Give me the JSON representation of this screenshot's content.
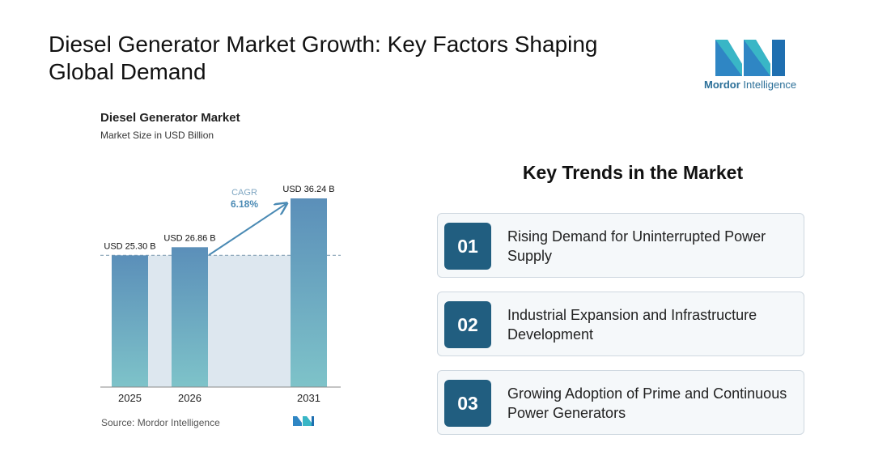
{
  "title": "Diesel Generator Market Growth: Key Factors Shaping Global Demand",
  "logo": {
    "brand_bold": "Mordor",
    "brand_rest": " Intelligence"
  },
  "chart_data": {
    "type": "bar",
    "title": "Diesel Generator Market",
    "subtitle": "Market Size in USD Billion",
    "categories": [
      "2025",
      "2026",
      "2031"
    ],
    "values": [
      25.3,
      26.86,
      36.24
    ],
    "data_labels": [
      "USD 25.30 B",
      "USD 26.86 B",
      "USD 36.24 B"
    ],
    "cagr_label": "CAGR",
    "cagr_value": "6.18%",
    "ylim": [
      0,
      36.24
    ],
    "reference_line_value": 25.3,
    "grid": false,
    "colors": {
      "bar_top": "#5b8fb9",
      "bar_bottom": "#7ec3c9",
      "band": "#dde7ef",
      "arrow": "#4a8ab4"
    }
  },
  "source": "Source:  Mordor Intelligence",
  "trends": {
    "title": "Key Trends in the Market",
    "items": [
      {
        "num": "01",
        "text": "Rising Demand for Uninterrupted Power Supply"
      },
      {
        "num": "02",
        "text": "Industrial Expansion and Infrastructure Development"
      },
      {
        "num": "03",
        "text": "Growing Adoption of Prime and Continuous Power Generators"
      }
    ]
  }
}
